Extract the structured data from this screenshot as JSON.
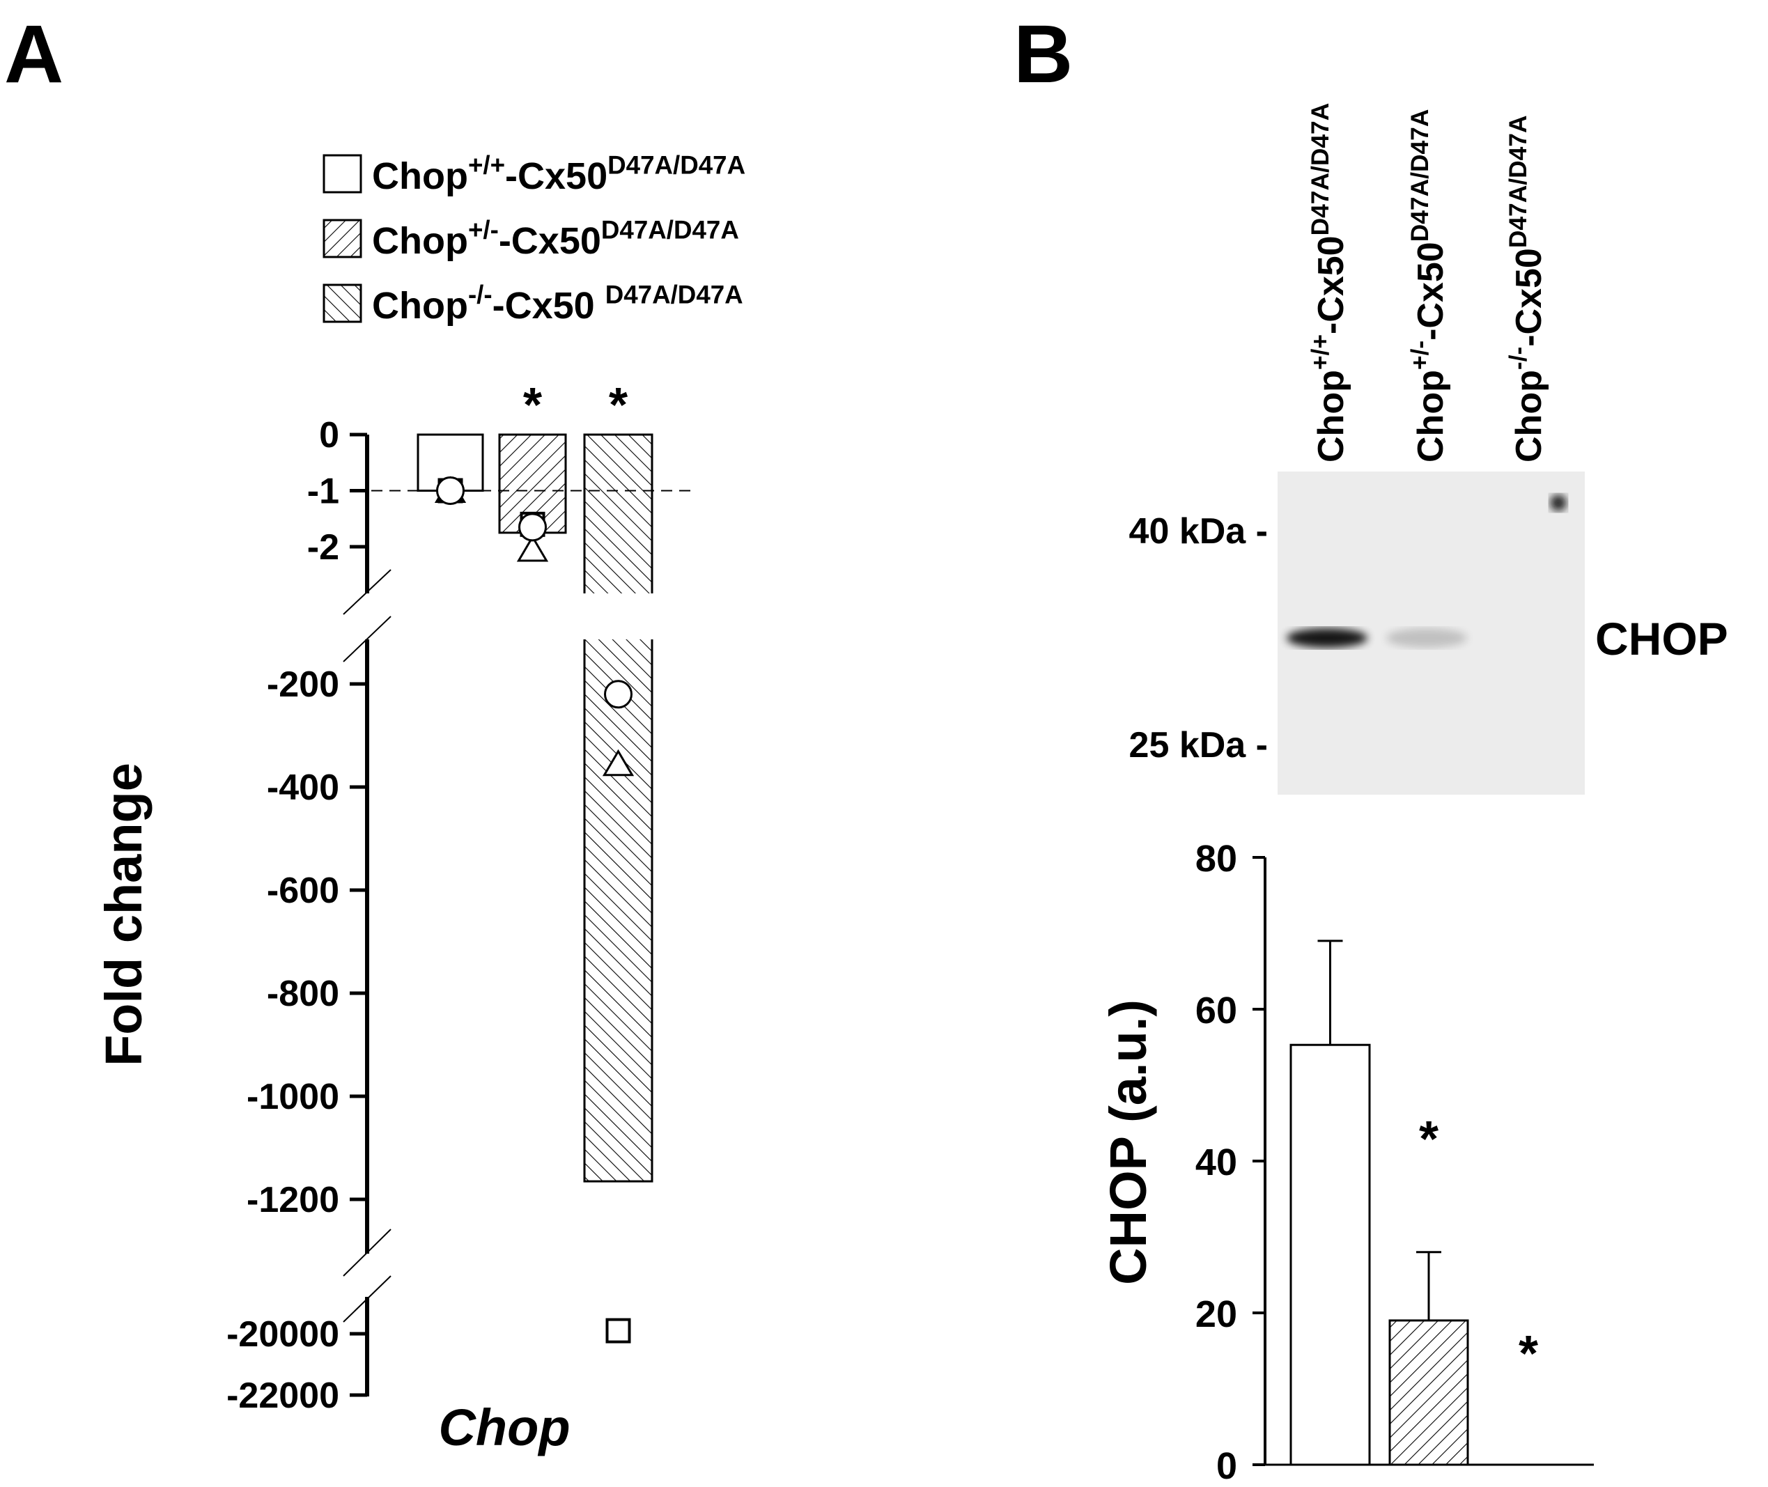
{
  "panel_labels": {
    "a": "A",
    "b": "B"
  },
  "legend": [
    {
      "base": "Chop",
      "sup1": "+/+",
      "mid": "-Cx50",
      "sup2": "D47A/D47A",
      "fill": "open"
    },
    {
      "base": "Chop",
      "sup1": "+/-",
      "mid": "-Cx50",
      "sup2": "D47A/D47A",
      "fill": "hatch-forward"
    },
    {
      "base": "Chop",
      "sup1": "-/-",
      "mid": "-Cx50 ",
      "sup2": "D47A/D47A",
      "fill": "hatch-back"
    }
  ],
  "blot": {
    "lanes": [
      {
        "base": "Chop",
        "sup1": "+/+",
        "mid": "-Cx50",
        "sup2": "D47A/D47A"
      },
      {
        "base": "Chop",
        "sup1": "+/-",
        "mid": "-Cx50",
        "sup2": "D47A/D47A"
      },
      {
        "base": "Chop",
        "sup1": "-/-",
        "mid": "-Cx50",
        "sup2": "D47A/D47A"
      }
    ],
    "markers": [
      "40 kDa -",
      "25 kDa -"
    ],
    "band_label": "CHOP",
    "band_intensity": [
      1.0,
      0.2,
      0.0
    ]
  },
  "chart_data": [
    {
      "type": "bar",
      "title": "",
      "xlabel": "Chop",
      "ylabel": "Fold change",
      "broken_axis": true,
      "ylim_segments": [
        [
          0,
          -2.8
        ],
        [
          -130,
          -1300
        ],
        [
          -19000,
          -22000
        ]
      ],
      "yticks": [
        "0",
        "-1",
        "-2",
        "-200",
        "-400",
        "-600",
        "-800",
        "-1000",
        "-1200",
        "-20000",
        "-22000"
      ],
      "ytick_values": [
        0,
        -1,
        -2,
        -200,
        -400,
        -600,
        -800,
        -1000,
        -1200,
        -20000,
        -22000
      ],
      "reference_line": -1,
      "categories": [
        "Chop+/+-Cx50D47A/D47A",
        "Chop+/--Cx50D47A/D47A",
        "Chop-/--Cx50D47A/D47A"
      ],
      "values": [
        -1,
        -1.75,
        -1165
      ],
      "significance": [
        "",
        "*",
        "*"
      ],
      "points": [
        {
          "circle": -1,
          "square": -1,
          "triangle": -1
        },
        {
          "circle": -1.65,
          "square": -1.6,
          "triangle": -2.05
        },
        {
          "circle": -220,
          "square": -19900,
          "triangle": -355
        }
      ]
    },
    {
      "type": "bar",
      "title": "",
      "xlabel": "",
      "ylabel": "CHOP (a.u.)",
      "ylim": [
        0,
        80
      ],
      "yticks": [
        "0",
        "20",
        "40",
        "60",
        "80"
      ],
      "ytick_values": [
        0,
        20,
        40,
        60,
        80
      ],
      "categories": [
        "Chop+/+-Cx50D47A/D47A",
        "Chop+/--Cx50D47A/D47A",
        "Chop-/--Cx50D47A/D47A"
      ],
      "values": [
        55.3,
        19,
        0
      ],
      "errors": [
        13.7,
        9,
        0
      ],
      "significance": [
        "",
        "*",
        "*"
      ]
    }
  ]
}
